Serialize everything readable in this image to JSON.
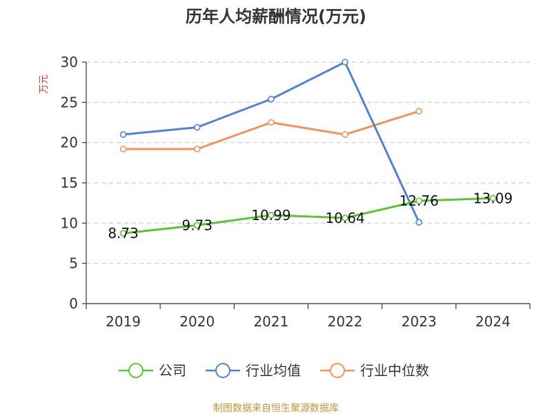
{
  "chart_data": {
    "type": "line",
    "title": "历年人均薪酬情况(万元)",
    "ylabel": "万元",
    "categories": [
      "2019",
      "2020",
      "2021",
      "2022",
      "2023",
      "2024"
    ],
    "ylim": [
      0,
      30
    ],
    "yticks": [
      0,
      5,
      10,
      15,
      20,
      25,
      30
    ],
    "grid": true,
    "legend_position": "bottom",
    "series": [
      {
        "name": "公司",
        "color": "#5bc431",
        "values": [
          8.73,
          9.73,
          10.99,
          10.64,
          12.76,
          13.09
        ],
        "labels": [
          "8.73",
          "9.73",
          "10.99",
          "10.64",
          "12.76",
          "13.09"
        ]
      },
      {
        "name": "行业均值",
        "color": "#4f81d9",
        "values": [
          21.0,
          21.9,
          25.4,
          30.0,
          10.1,
          null
        ]
      },
      {
        "name": "行业中位数",
        "color": "#f5925b",
        "values": [
          19.2,
          19.2,
          22.5,
          21.0,
          23.9,
          null
        ]
      }
    ]
  },
  "source_text": "制图数据来自恒生聚源数据库",
  "colors": {
    "ylabel": "#e53935",
    "source": "#c8943a",
    "axis": "#333333",
    "grid": "#cccccc"
  }
}
